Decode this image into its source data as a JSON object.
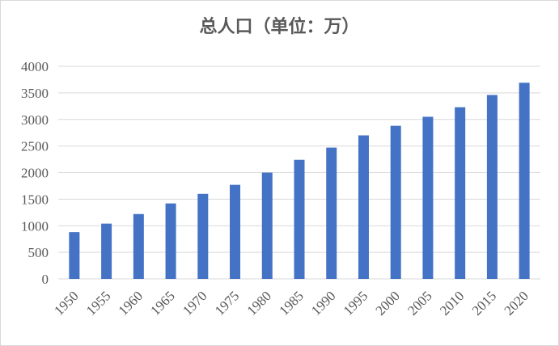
{
  "chart_data": {
    "type": "bar",
    "title": "总人口（单位：万）",
    "xlabel": "",
    "ylabel": "",
    "categories": [
      "1950",
      "1955",
      "1960",
      "1965",
      "1970",
      "1975",
      "1980",
      "1985",
      "1990",
      "1995",
      "2000",
      "2005",
      "2010",
      "2015",
      "2020"
    ],
    "values": [
      880,
      1040,
      1220,
      1420,
      1600,
      1770,
      2000,
      2240,
      2470,
      2700,
      2880,
      3050,
      3230,
      3460,
      3690
    ],
    "ylim": [
      0,
      4000
    ],
    "yticks": [
      "0",
      "500",
      "1000",
      "1500",
      "2000",
      "2500",
      "3000",
      "3500",
      "4000"
    ],
    "grid": true,
    "legend": "none",
    "bar_color": "#4472c4",
    "grid_color": "#d9d9d9",
    "text_color": "#595959"
  }
}
